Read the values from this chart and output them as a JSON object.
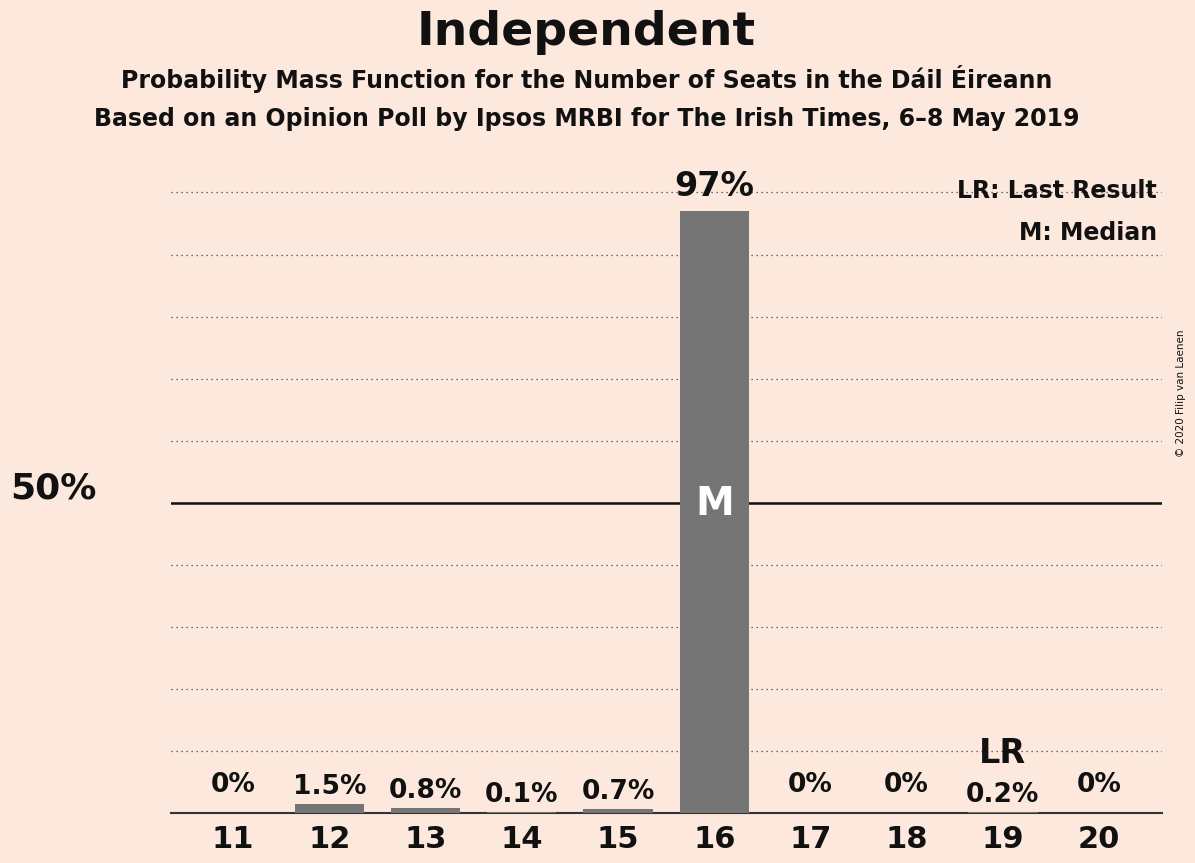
{
  "title": "Independent",
  "subtitle1": "Probability Mass Function for the Number of Seats in the Dáil Éireann",
  "subtitle2": "Based on an Opinion Poll by Ipsos MRBI for The Irish Times, 6–8 May 2019",
  "copyright": "© 2020 Filip van Laenen",
  "categories": [
    11,
    12,
    13,
    14,
    15,
    16,
    17,
    18,
    19,
    20
  ],
  "values": [
    0.0,
    1.5,
    0.8,
    0.1,
    0.7,
    97.0,
    0.0,
    0.0,
    0.2,
    0.0
  ],
  "bar_color": "#757575",
  "background_color": "#fce8dc",
  "label_50pct": "50%",
  "legend_lr": "LR: Last Result",
  "legend_m": "M: Median",
  "median_seat": 16,
  "lr_seat": 19,
  "ylim": [
    0,
    105
  ],
  "bar_labels": [
    "0%",
    "1.5%",
    "0.8%",
    "0.1%",
    "0.7%",
    "97%",
    "0%",
    "0%",
    "0.2%",
    "0%"
  ],
  "title_fontsize": 34,
  "subtitle_fontsize": 17,
  "axis_tick_fontsize": 22,
  "bar_label_fontsize": 19,
  "median_label_fontsize": 28,
  "lr_label_fontsize": 24
}
